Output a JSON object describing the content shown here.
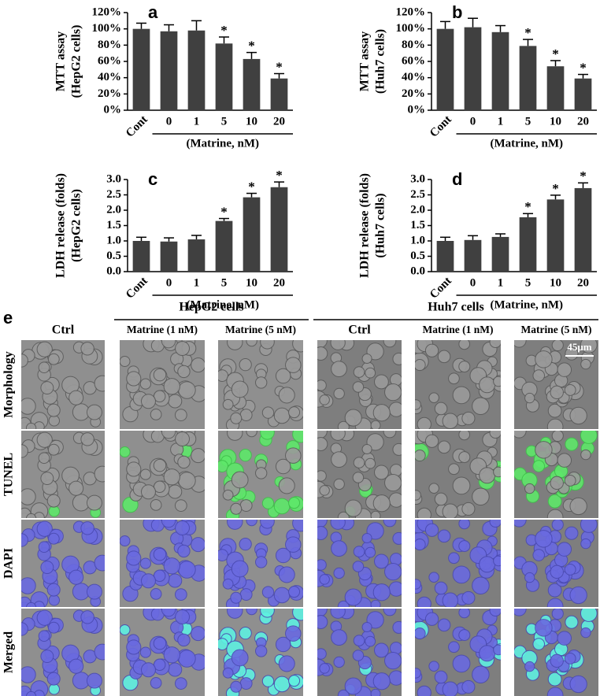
{
  "chart_data": [
    {
      "type": "bar",
      "label": "a",
      "ylabel": "MTT assay",
      "ylabel2": "(HepG2 cells)",
      "group_label": "(Matrine, nM)",
      "categories": [
        "Cont",
        "0",
        "1",
        "5",
        "10",
        "20"
      ],
      "values": [
        100,
        97,
        98,
        82,
        63,
        39
      ],
      "errors": [
        7,
        8,
        12,
        8,
        8,
        6
      ],
      "annotations": [
        null,
        null,
        null,
        "*",
        "*",
        "*"
      ],
      "color": "#404040",
      "ylim": [
        0,
        120
      ],
      "yticks": [
        {
          "value": 0,
          "label": "0%"
        },
        {
          "value": 20,
          "label": "20%"
        },
        {
          "value": 40,
          "label": "40%"
        },
        {
          "value": 60,
          "label": "60%"
        },
        {
          "value": 80,
          "label": "80%"
        },
        {
          "value": 100,
          "label": "100%"
        },
        {
          "value": 120,
          "label": "120%"
        }
      ]
    },
    {
      "type": "bar",
      "label": "b",
      "ylabel": "MTT assay",
      "ylabel2": "(Huh7 cells)",
      "group_label": "(Matrine, nM)",
      "categories": [
        "Cont",
        "0",
        "1",
        "5",
        "10",
        "20"
      ],
      "values": [
        100,
        102,
        96,
        79,
        54,
        39
      ],
      "errors": [
        9,
        11,
        8,
        8,
        7,
        5
      ],
      "annotations": [
        null,
        null,
        null,
        "*",
        "*",
        "*"
      ],
      "color": "#404040",
      "ylim": [
        0,
        120
      ],
      "yticks": [
        {
          "value": 0,
          "label": "0%"
        },
        {
          "value": 20,
          "label": "20%"
        },
        {
          "value": 40,
          "label": "40%"
        },
        {
          "value": 60,
          "label": "60%"
        },
        {
          "value": 80,
          "label": "80%"
        },
        {
          "value": 100,
          "label": "100%"
        },
        {
          "value": 120,
          "label": "120%"
        }
      ]
    },
    {
      "type": "bar",
      "label": "c",
      "ylabel": "LDH release (folds)",
      "ylabel2": "(HepG2 cells)",
      "group_label": "(Matrine, nM)",
      "categories": [
        "Cont",
        "0",
        "1",
        "5",
        "10",
        "20"
      ],
      "values": [
        1.0,
        0.98,
        1.05,
        1.65,
        2.42,
        2.75
      ],
      "errors": [
        0.12,
        0.12,
        0.13,
        0.08,
        0.13,
        0.17
      ],
      "annotations": [
        null,
        null,
        null,
        "*",
        "*",
        "*"
      ],
      "color": "#404040",
      "ylim": [
        0,
        3
      ],
      "yticks": [
        {
          "value": 0,
          "label": "0.0"
        },
        0.5,
        {
          "value": 1,
          "label": "1.0"
        },
        1.5,
        {
          "value": 2,
          "label": "2.0"
        },
        2.5,
        {
          "value": 3,
          "label": "3.0"
        }
      ]
    },
    {
      "type": "bar",
      "label": "d",
      "ylabel": "LDH release (folds)",
      "ylabel2": "(Huh7 cells)",
      "group_label": "(Matrine, nM)",
      "categories": [
        "Cont",
        "0",
        "1",
        "5",
        "10",
        "20"
      ],
      "values": [
        1.0,
        1.03,
        1.13,
        1.77,
        2.35,
        2.72
      ],
      "errors": [
        0.12,
        0.14,
        0.1,
        0.12,
        0.14,
        0.17
      ],
      "annotations": [
        null,
        null,
        null,
        "*",
        "*",
        "*"
      ],
      "color": "#404040",
      "ylim": [
        0,
        3
      ],
      "yticks": [
        {
          "value": 0,
          "label": "0.0"
        },
        0.5,
        {
          "value": 1,
          "label": "1.0"
        },
        1.5,
        {
          "value": 2,
          "label": "2.0"
        },
        2.5,
        {
          "value": 3,
          "label": "3.0"
        }
      ]
    }
  ],
  "figure_e": {
    "label": "e",
    "groups": [
      {
        "title": "HepG2 cells",
        "columns": [
          "Ctrl",
          "Matrine (1 nM)",
          "Matrine (5 nM)"
        ]
      },
      {
        "title": "Huh7 cells",
        "columns": [
          "Ctrl",
          "Matrine (1 nM)",
          "Matrine (5 nM)"
        ]
      }
    ],
    "rows": [
      "Morphology",
      "TUNEL",
      "DAPI",
      "Merged"
    ],
    "scale_bar": "45μm"
  }
}
